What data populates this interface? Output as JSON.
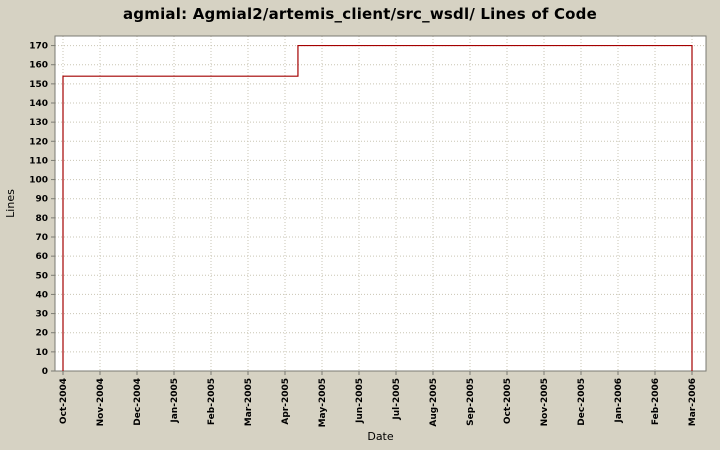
{
  "title": "agmial: Agmial2/artemis_client/src_wsdl/ Lines of Code",
  "chart_data": {
    "type": "line",
    "step": true,
    "title": "agmial: Agmial2/artemis_client/src_wsdl/ Lines of Code",
    "xlabel": "Date",
    "ylabel": "Lines",
    "x_tick_labels": [
      "Oct-2004",
      "Nov-2004",
      "Dec-2004",
      "Jan-2005",
      "Feb-2005",
      "Mar-2005",
      "Apr-2005",
      "May-2005",
      "Jun-2005",
      "Jul-2005",
      "Aug-2005",
      "Sep-2005",
      "Oct-2005",
      "Nov-2005",
      "Dec-2005",
      "Jan-2006",
      "Feb-2006",
      "Mar-2006"
    ],
    "y_ticks": [
      0,
      10,
      20,
      30,
      40,
      50,
      60,
      70,
      80,
      90,
      100,
      110,
      120,
      130,
      140,
      150,
      160,
      170
    ],
    "ylim": [
      0,
      175
    ],
    "grid": true,
    "legend": "none",
    "colors": {
      "background": "#d6d2c3",
      "plot_background": "#ffffff",
      "gridline": "#c9c5b4",
      "line": "#a40000",
      "border": "#7b7b73",
      "text": "#000000"
    },
    "series": [
      {
        "name": "Lines of Code",
        "color": "#a40000",
        "x_unit": "month-index (0 = Oct-2004)",
        "points": [
          [
            0,
            0
          ],
          [
            0,
            154
          ],
          [
            6.35,
            154
          ],
          [
            6.35,
            170
          ],
          [
            17,
            170
          ],
          [
            17,
            0
          ]
        ]
      }
    ]
  }
}
